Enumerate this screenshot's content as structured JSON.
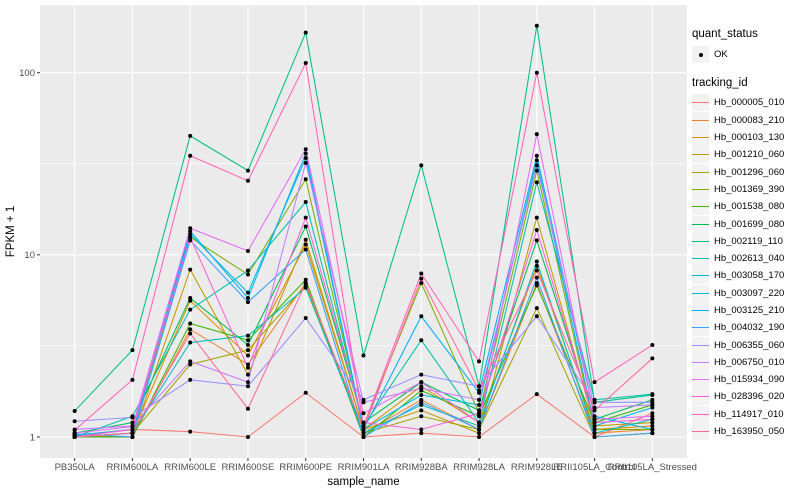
{
  "chart_data": {
    "type": "line",
    "title": "",
    "xlabel": "sample_name",
    "ylabel": "FPKM + 1",
    "y_scale": "log10",
    "grid": true,
    "panel_bg": "#EBEBEB",
    "grid_color": "#FFFFFF",
    "tick_color": "#333333",
    "tick_label_color": "#4D4D4D",
    "point_color": "#000000",
    "legend_position": "right",
    "x_categories": [
      "PB350LA",
      "RRIM600LA",
      "RRIM600LE",
      "RRIM600SE",
      "RRIM600PE",
      "RRIM901LA",
      "RRIM928BA",
      "RRIM928LA",
      "RRIM928LE",
      "RRII105LA_Control",
      "RRII105LA_Stressed"
    ],
    "y_ticks": [
      1,
      10,
      100
    ],
    "y_tick_labels": [
      "1",
      "10",
      "100"
    ],
    "y_minor_breaks": [
      3.1623,
      31.623
    ],
    "ylim": [
      0.78,
      226
    ],
    "legend": {
      "quant_status_title": "quant_status",
      "ok_label": "OK",
      "ok_marker": "point",
      "tracking_id_title": "tracking_id"
    },
    "series": [
      {
        "name": "Hb_000005_010",
        "color": "#F8766D",
        "values": [
          1.02,
          1.1,
          1.07,
          1.0,
          1.75,
          1.0,
          1.05,
          1.0,
          1.72,
          1.0,
          1.35
        ]
      },
      {
        "name": "Hb_000083_210",
        "color": "#EA8331",
        "values": [
          1.0,
          1.0,
          3.9,
          2.5,
          7.0,
          1.05,
          1.6,
          1.1,
          7.0,
          1.05,
          1.1
        ]
      },
      {
        "name": "Hb_000103_130",
        "color": "#D89000",
        "values": [
          1.0,
          1.05,
          5.6,
          2.8,
          11.4,
          1.1,
          1.9,
          1.2,
          8.7,
          1.1,
          1.15
        ]
      },
      {
        "name": "Hb_001210_060",
        "color": "#C09B00",
        "values": [
          1.02,
          1.0,
          8.3,
          2.2,
          12.1,
          1.1,
          1.4,
          1.05,
          16.0,
          1.15,
          1.2
        ]
      },
      {
        "name": "Hb_001296_060",
        "color": "#A3A500",
        "values": [
          1.0,
          1.05,
          2.5,
          3.0,
          6.8,
          1.05,
          1.3,
          1.1,
          5.1,
          1.0,
          1.05
        ]
      },
      {
        "name": "Hb_001369_390",
        "color": "#7CAE00",
        "values": [
          1.0,
          1.05,
          12.5,
          7.8,
          26.0,
          1.15,
          7.0,
          1.35,
          29.0,
          1.1,
          1.1
        ]
      },
      {
        "name": "Hb_001538_080",
        "color": "#39B600",
        "values": [
          1.0,
          1.0,
          4.2,
          3.4,
          7.3,
          1.0,
          1.8,
          1.3,
          6.8,
          1.2,
          1.5
        ]
      },
      {
        "name": "Hb_001699_080",
        "color": "#00BB4E",
        "values": [
          1.05,
          1.2,
          5.8,
          3.2,
          14.3,
          1.2,
          2.0,
          1.4,
          12.0,
          1.25,
          1.6
        ]
      },
      {
        "name": "Hb_002119_110",
        "color": "#00C087",
        "values": [
          1.39,
          3.0,
          45.0,
          29.0,
          166.0,
          2.8,
          31.0,
          1.9,
          181.0,
          1.55,
          1.7
        ]
      },
      {
        "name": "Hb_002613_040",
        "color": "#00C1AB",
        "values": [
          1.0,
          1.3,
          5.0,
          8.2,
          19.5,
          1.15,
          3.4,
          1.2,
          25.0,
          1.6,
          1.72
        ]
      },
      {
        "name": "Hb_003058_170",
        "color": "#00BFC4",
        "values": [
          1.0,
          1.05,
          3.3,
          3.6,
          6.6,
          1.05,
          1.5,
          1.15,
          9.2,
          1.05,
          1.25
        ]
      },
      {
        "name": "Hb_003097_220",
        "color": "#00BAE0",
        "values": [
          1.02,
          1.1,
          13.0,
          6.2,
          34.0,
          1.1,
          1.7,
          1.5,
          33.0,
          1.15,
          1.45
        ]
      },
      {
        "name": "Hb_003125_210",
        "color": "#00B0F6",
        "values": [
          1.0,
          1.05,
          13.5,
          5.8,
          36.0,
          1.1,
          4.6,
          1.75,
          35.0,
          1.3,
          1.1
        ]
      },
      {
        "name": "Hb_004032_190",
        "color": "#35A2FF",
        "values": [
          1.04,
          1.0,
          12.0,
          5.5,
          10.7,
          1.0,
          1.55,
          1.1,
          7.5,
          1.0,
          1.05
        ]
      },
      {
        "name": "Hb_006355_060",
        "color": "#9590FF",
        "values": [
          1.22,
          1.28,
          2.06,
          1.9,
          4.5,
          1.6,
          2.2,
          1.9,
          4.6,
          1.55,
          1.55
        ]
      },
      {
        "name": "Hb_006750_010",
        "color": "#C77CFF",
        "values": [
          1.1,
          1.15,
          2.6,
          2.0,
          32.0,
          1.55,
          1.85,
          1.6,
          31.0,
          1.45,
          1.5
        ]
      },
      {
        "name": "Hb_015934_090",
        "color": "#E76BF3",
        "values": [
          1.05,
          1.14,
          14.0,
          10.5,
          38.0,
          1.35,
          2.0,
          1.2,
          46.0,
          1.25,
          1.3
        ]
      },
      {
        "name": "Hb_028396_020",
        "color": "#FA62DB",
        "values": [
          1.0,
          1.1,
          12.5,
          2.4,
          16.0,
          1.2,
          1.1,
          1.35,
          13.7,
          1.2,
          1.25
        ]
      },
      {
        "name": "Hb_114917_010",
        "color": "#FF62BC",
        "values": [
          1.09,
          2.06,
          35.0,
          25.5,
          113.0,
          1.15,
          7.9,
          2.6,
          100.0,
          2.0,
          3.2
        ]
      },
      {
        "name": "Hb_163950_050",
        "color": "#FF6A98",
        "values": [
          1.0,
          1.05,
          3.7,
          1.43,
          7.0,
          1.1,
          7.4,
          1.8,
          8.2,
          1.4,
          2.7
        ]
      }
    ]
  }
}
